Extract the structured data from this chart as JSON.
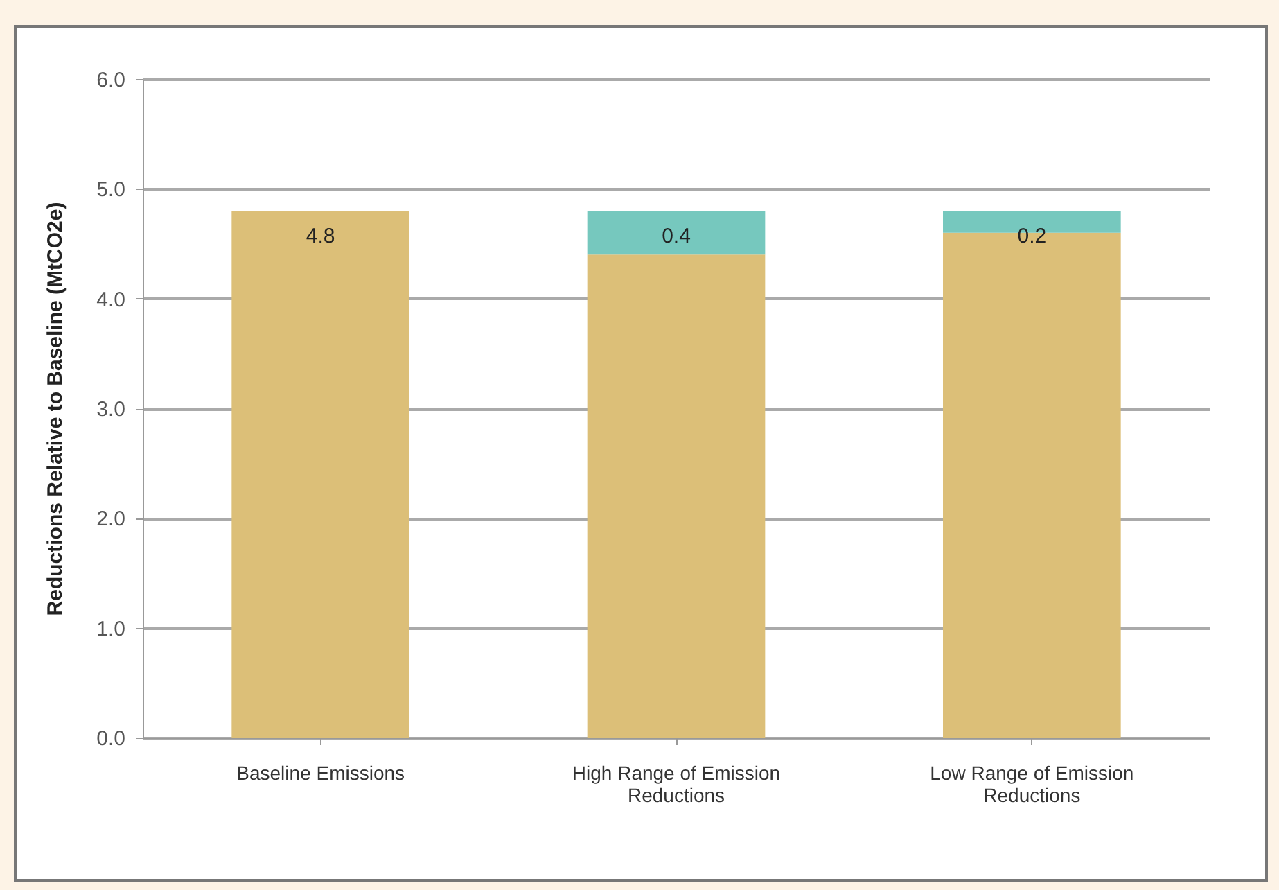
{
  "chart_data": {
    "type": "bar",
    "stacked": true,
    "ylabel": "Reductions Relative to Baseline  (MtCO2e)",
    "categories": [
      "Baseline Emissions",
      "High Range of Emission Reductions",
      "Low Range of Emission Reductions"
    ],
    "series": [
      {
        "color": "#dcbf78",
        "values": [
          4.8,
          4.4,
          4.6
        ],
        "value_labels": [
          "4.8",
          null,
          null
        ]
      },
      {
        "color": "#76c8be",
        "values": [
          null,
          0.4,
          0.2
        ],
        "value_labels": [
          null,
          "0.4",
          "0.2"
        ]
      }
    ],
    "ylim": [
      0,
      6
    ],
    "yticks": [
      {
        "value": 0,
        "label": "0.0"
      },
      {
        "value": 1,
        "label": "1.0"
      },
      {
        "value": 2,
        "label": "2.0"
      },
      {
        "value": 3,
        "label": "3.0"
      },
      {
        "value": 4,
        "label": "4.0"
      },
      {
        "value": 5,
        "label": "5.0"
      },
      {
        "value": 6,
        "label": "6.0"
      }
    ],
    "grid": "y",
    "legend": false
  }
}
